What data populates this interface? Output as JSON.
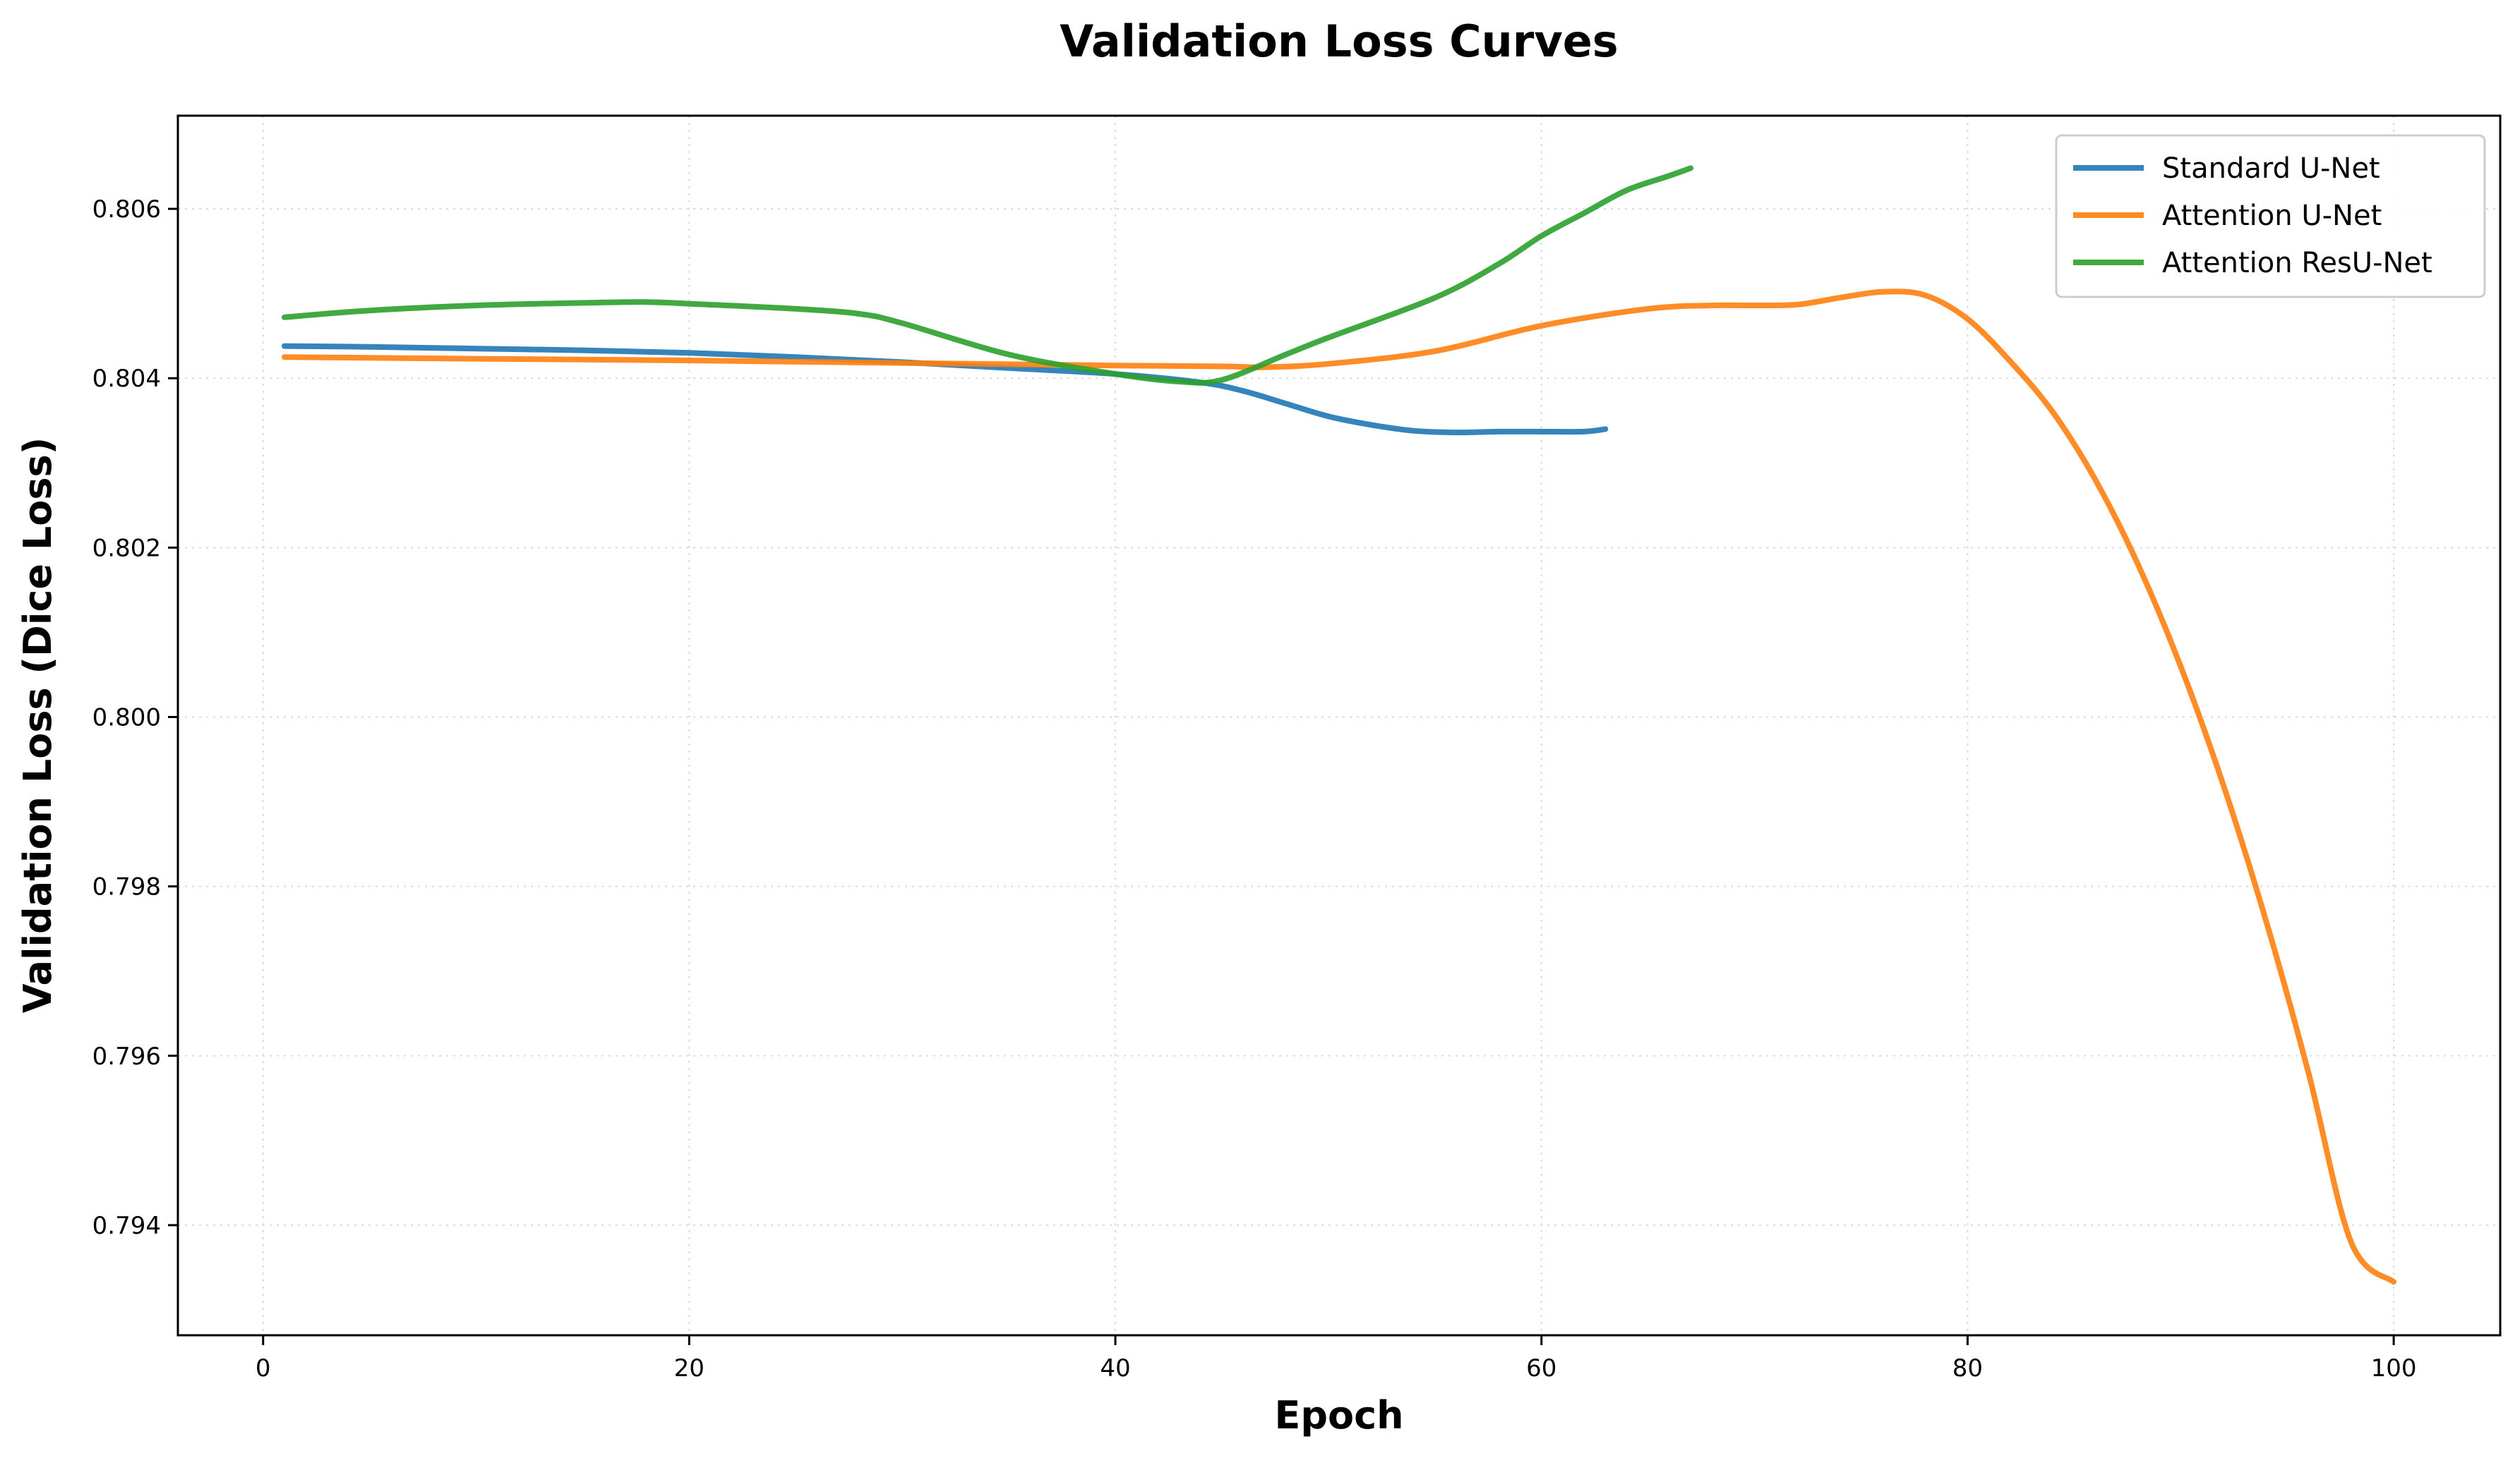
{
  "chart_data": {
    "type": "line",
    "title": "Validation Loss Curves",
    "xlabel": "Epoch",
    "ylabel": "Validation Loss (Dice Loss)",
    "xlim": [
      -4,
      105
    ],
    "ylim": [
      0.7927,
      0.8071
    ],
    "xticks": [
      0,
      20,
      40,
      60,
      80,
      100
    ],
    "yticks": [
      0.794,
      0.796,
      0.798,
      0.8,
      0.802,
      0.804,
      0.806
    ],
    "xtick_labels": [
      "0",
      "20",
      "40",
      "60",
      "80",
      "100"
    ],
    "ytick_labels": [
      "0.794",
      "0.796",
      "0.798",
      "0.800",
      "0.802",
      "0.804",
      "0.806"
    ],
    "grid": true,
    "legend_position": "top-right",
    "series": [
      {
        "name": "Standard U-Net",
        "color": "#1f77b4",
        "x": [
          1,
          5,
          10,
          15,
          20,
          25,
          30,
          35,
          40,
          44,
          46,
          48,
          50,
          52,
          54,
          56,
          58,
          60,
          62,
          63
        ],
        "y": [
          0.80438,
          0.80437,
          0.80435,
          0.80433,
          0.8043,
          0.80425,
          0.80419,
          0.80412,
          0.80405,
          0.80395,
          0.80385,
          0.8037,
          0.80355,
          0.80345,
          0.80338,
          0.80336,
          0.80337,
          0.80337,
          0.80337,
          0.8034
        ]
      },
      {
        "name": "Attention U-Net",
        "color": "#ff7f0e",
        "x": [
          1,
          10,
          20,
          30,
          40,
          45,
          47,
          50,
          55,
          60,
          65,
          68,
          70,
          72,
          74,
          76,
          78,
          80,
          82,
          84,
          86,
          88,
          90,
          92,
          94,
          96,
          98,
          100
        ],
        "y": [
          0.80425,
          0.80423,
          0.80421,
          0.80418,
          0.80415,
          0.80414,
          0.80413,
          0.80417,
          0.80432,
          0.80462,
          0.80482,
          0.80486,
          0.80486,
          0.80487,
          0.80495,
          0.80502,
          0.80498,
          0.8047,
          0.8042,
          0.8036,
          0.8028,
          0.8018,
          0.8006,
          0.7992,
          0.7976,
          0.7958,
          0.7938,
          0.79333
        ]
      },
      {
        "name": "Attention ResU-Net",
        "color": "#2ca02c",
        "x": [
          1,
          5,
          10,
          15,
          18,
          20,
          25,
          28,
          30,
          35,
          40,
          43,
          45,
          48,
          50,
          55,
          58,
          60,
          62,
          64,
          66,
          67
        ],
        "y": [
          0.80472,
          0.8048,
          0.80486,
          0.80489,
          0.8049,
          0.80488,
          0.80482,
          0.80476,
          0.80465,
          0.80428,
          0.80405,
          0.80396,
          0.80398,
          0.80428,
          0.80448,
          0.80495,
          0.80535,
          0.80568,
          0.80595,
          0.80622,
          0.80639,
          0.80648
        ]
      }
    ]
  }
}
